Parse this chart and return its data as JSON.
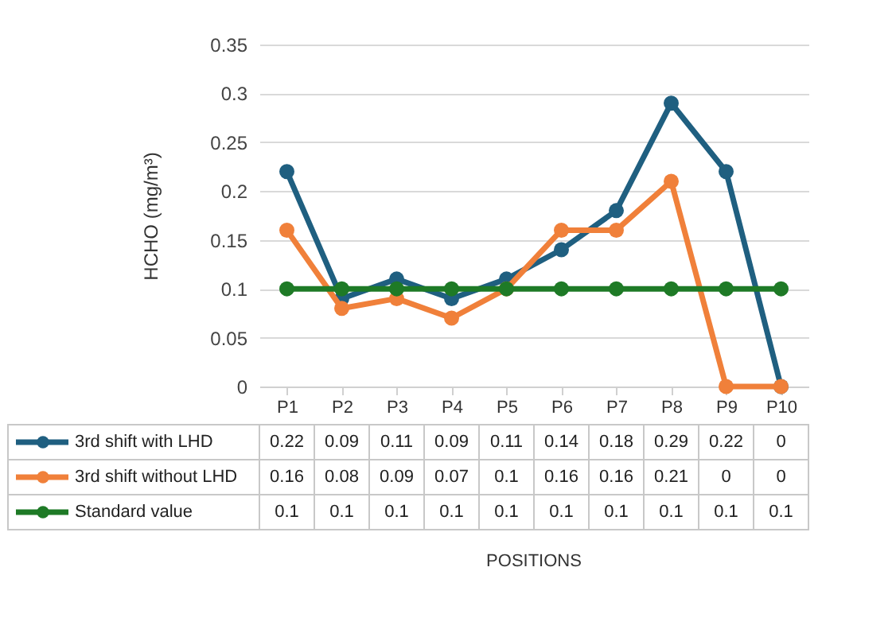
{
  "chart_data": {
    "type": "line",
    "ylabel": "HCHO (mg/m³)",
    "annotations": [
      "POSITIONS"
    ],
    "categories": [
      "P1",
      "P2",
      "P3",
      "P4",
      "P5",
      "P6",
      "P7",
      "P8",
      "P9",
      "P10"
    ],
    "series": [
      {
        "name": "3rd shift with LHD",
        "color": "#1f5f80",
        "values": [
          0.22,
          0.09,
          0.11,
          0.09,
          0.11,
          0.14,
          0.18,
          0.29,
          0.22,
          0
        ]
      },
      {
        "name": "3rd shift without LHD",
        "color": "#f0803a",
        "values": [
          0.16,
          0.08,
          0.09,
          0.07,
          0.1,
          0.16,
          0.16,
          0.21,
          0,
          0
        ]
      },
      {
        "name": "Standard value",
        "color": "#1e7a26",
        "values": [
          0.1,
          0.1,
          0.1,
          0.1,
          0.1,
          0.1,
          0.1,
          0.1,
          0.1,
          0.1
        ]
      }
    ],
    "ylim": [
      0,
      0.35
    ],
    "yticks": [
      0,
      0.05,
      0.1,
      0.15,
      0.2,
      0.25,
      0.3,
      0.35
    ],
    "grid": "y",
    "legend": "bottom",
    "marker": "circle",
    "line_style": "solid",
    "data_labels": true
  }
}
